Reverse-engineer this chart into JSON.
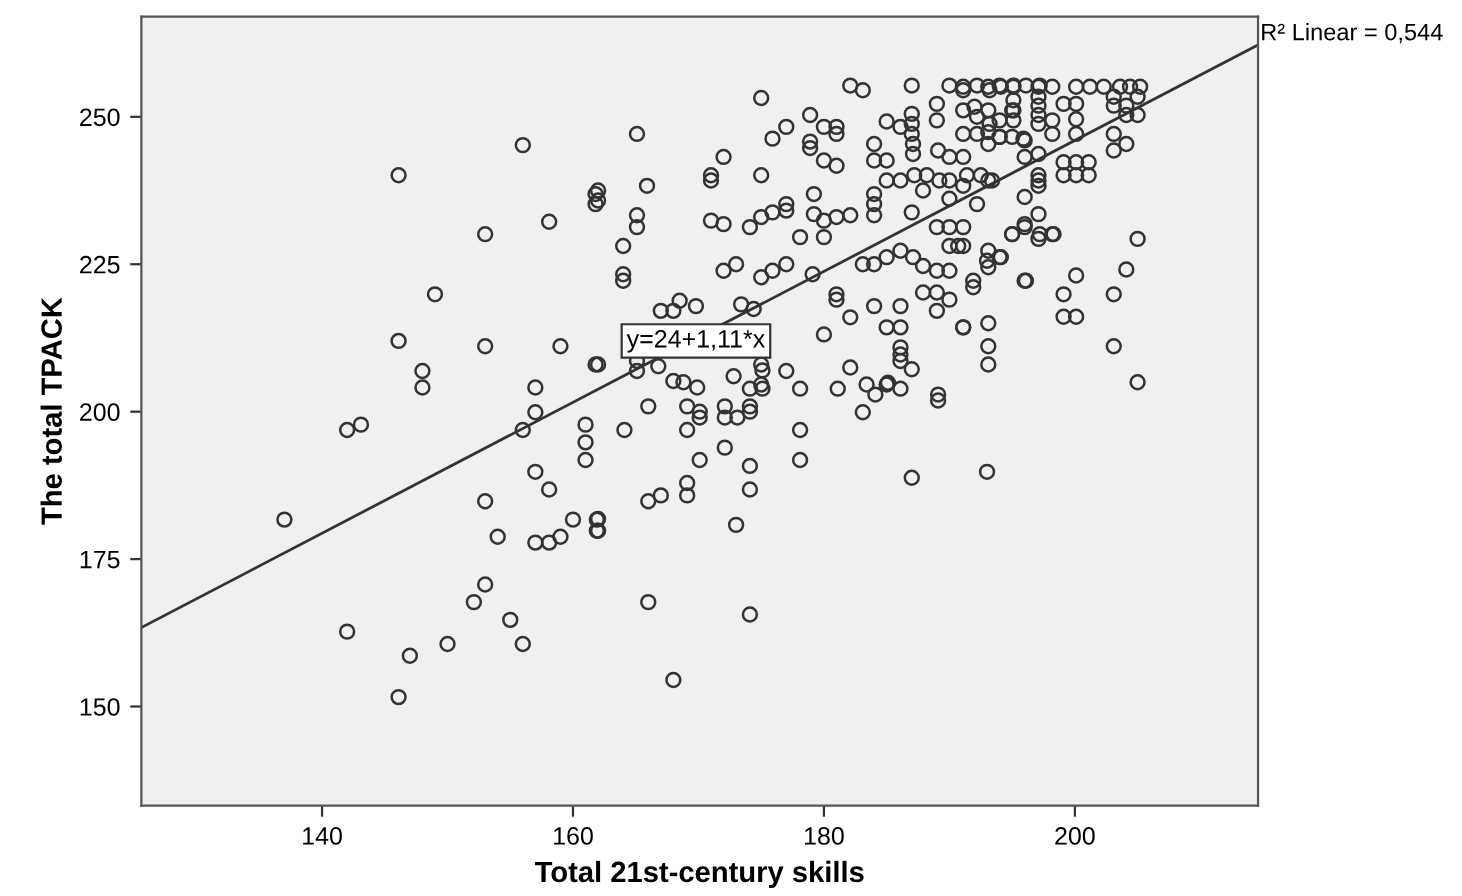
{
  "chart_data": {
    "type": "scatter",
    "xlabel": "Total 21st-century skills",
    "ylabel": "The total TPACK",
    "xlim": [
      125.6,
      214.6
    ],
    "ylim": [
      133.2,
      267.0
    ],
    "xticks": [
      140,
      160,
      180,
      200
    ],
    "yticks": [
      150,
      175,
      200,
      225,
      250
    ],
    "annotations": [
      {
        "text": "y=24+1,11*x",
        "x": 169.8,
        "y": 212
      },
      "R² Linear = 0,544"
    ],
    "series": [
      {
        "color": "#333333",
        "marker": "circle",
        "x": [
          146.1,
          156.0,
          158.1,
          153.0,
          161.8,
          161.8,
          149.0,
          146.1,
          153.0,
          159.0,
          161.8,
          148.0,
          148.0,
          157.0,
          157.0,
          142.0,
          143.1,
          156.0,
          161.0,
          161.0,
          161.0,
          157.0,
          158.1,
          153.0,
          137.0,
          160.0,
          161.9,
          161.9,
          154.0,
          157.0,
          158.1,
          159.0,
          153.0,
          152.1,
          155.0,
          142.0,
          150.0,
          156.0,
          147.0,
          146.1,
          164.1,
          166.0,
          169.1,
          169.1,
          170.1,
          170.1,
          172.1,
          172.1,
          173.1,
          174.1,
          174.1,
          174.1,
          175.1,
          175.1,
          178.1,
          181.1,
          184.1,
          186.1,
          185.1,
          183.1,
          189.1,
          189.1,
          178.1,
          172.1,
          170.1,
          174.1,
          178.1,
          187.0,
          193.0,
          169.1,
          169.1,
          167.0,
          166.0,
          174.1,
          162.0,
          162.0,
          173.0,
          166.0,
          174.1,
          168.0,
          205.0,
          204.1,
          203.1,
          200.1,
          199.1,
          199.1,
          200.1,
          203.1,
          205.0,
          196.0,
          193.1,
          193.1,
          193.1,
          191.1,
          193.1,
          194.1,
          193.1,
          203.1,
          204.1,
          203.1,
          199.1,
          200.1,
          201.1,
          199.1,
          200.1,
          201.1,
          197.1,
          197.1,
          197.1,
          196.0,
          197.1,
          196.0,
          195.0,
          198.2,
          197.1,
          191.1,
          191.1,
          193.1,
          197.1,
          200.1,
          198.2,
          196.0,
          194.0,
          195.0,
          196.0,
          191.1,
          193.1,
          193.1,
          191.1,
          193.1,
          194.1,
          195.1,
          197.1,
          198.2,
          200.1,
          201.2,
          202.3,
          203.6,
          204.4,
          205.2,
          197.1,
          197.1,
          197.1,
          197.1,
          203.1,
          204.1,
          205.0,
          203.1,
          204.1,
          205.0,
          192.0,
          193.1,
          194.0,
          195.0,
          199.1,
          200.1,
          198.2,
          200.1,
          182.1,
          183.1,
          187.0,
          175.0,
          190.0,
          191.1,
          192.2,
          193.2,
          194.0,
          195.1,
          196.1,
          197.2,
          195.1,
          195.1,
          195.1,
          189.0,
          189.0,
          187.0,
          187.0,
          187.0,
          191.1,
          192.2,
          193.2,
          192.2,
          194.0,
          195.9,
          189.1,
          190.0,
          191.1,
          184.0,
          187.1,
          187.1,
          185.0,
          186.1,
          178.9,
          180.0,
          181.0,
          181.0,
          177.0,
          175.9,
          178.9,
          178.9,
          180.0,
          181.0,
          184.0,
          185.0,
          185.0,
          186.1,
          187.2,
          188.2,
          189.2,
          190.0,
          191.4,
          192.5,
          193.4,
          187.9,
          190.0,
          192.2,
          184.0,
          184.0,
          184.0,
          187.0,
          189.0,
          190.0,
          191.1,
          190.0,
          190.7,
          195.0,
          196.0,
          197.2,
          198.3,
          193.0,
          194.0,
          191.9,
          191.9,
          196.1,
          186.1,
          187.1,
          187.9,
          189.0,
          190.0,
          185.0,
          184.0,
          182.1,
          181.0,
          180.0,
          179.2,
          178.1,
          180.0,
          179.2,
          177.0,
          177.0,
          175.9,
          175.0,
          174.1,
          172.0,
          171.0,
          175.0,
          172.0,
          171.0,
          171.0,
          165.9,
          165.1,
          165.1,
          164.0,
          165.1,
          162.0,
          162.0,
          164.0,
          164.0,
          172.0,
          173.0,
          175.0,
          175.9,
          177.0,
          179.1,
          183.1,
          181.0,
          181.0,
          182.1,
          184.0,
          186.1,
          187.9,
          189.0,
          190.0,
          189.0,
          191.1,
          173.4,
          174.4,
          167.0,
          168.0,
          168.5,
          169.8,
          185.0,
          186.1,
          186.1,
          186.1,
          186.1,
          180.0,
          182.1,
          187.0,
          183.4,
          185.0,
          177.0,
          175.0,
          175.0,
          172.8,
          169.9,
          168.8,
          168.0,
          166.8,
          165.1,
          165.1,
          162.0
        ],
        "values": [
          240.1,
          245.2,
          232.2,
          230.1,
          236.9,
          235.2,
          219.9,
          212.0,
          211.1,
          211.1,
          208.0,
          206.9,
          204.1,
          204.1,
          199.9,
          196.9,
          197.8,
          196.9,
          197.8,
          194.8,
          191.8,
          189.8,
          186.8,
          184.8,
          181.7,
          181.7,
          181.7,
          179.8,
          178.8,
          177.8,
          177.8,
          178.8,
          170.7,
          167.7,
          164.7,
          162.7,
          160.6,
          160.6,
          158.6,
          151.6,
          196.9,
          200.9,
          200.9,
          196.9,
          200.0,
          199.0,
          200.9,
          199.0,
          199.0,
          200.9,
          200.0,
          203.9,
          203.9,
          207.0,
          203.9,
          203.9,
          202.9,
          203.9,
          204.9,
          199.9,
          202.9,
          201.9,
          196.9,
          193.9,
          191.8,
          190.8,
          191.8,
          188.8,
          189.8,
          187.9,
          185.8,
          185.8,
          184.8,
          186.8,
          181.8,
          179.8,
          180.8,
          167.7,
          165.6,
          154.5,
          229.3,
          224.1,
          219.9,
          223.1,
          219.9,
          216.1,
          216.1,
          211.1,
          205.0,
          222.2,
          215.0,
          211.1,
          208.0,
          214.3,
          224.5,
          226.2,
          227.3,
          247.1,
          245.4,
          244.3,
          242.3,
          242.3,
          242.3,
          240.1,
          240.1,
          240.1,
          240.1,
          239.2,
          238.3,
          236.4,
          233.5,
          231.8,
          230.1,
          230.1,
          229.3,
          228.1,
          238.3,
          239.2,
          243.7,
          247.1,
          247.1,
          243.2,
          246.6,
          246.6,
          246.0,
          247.1,
          245.4,
          247.4,
          255.1,
          255.1,
          255.1,
          255.1,
          255.1,
          255.1,
          255.1,
          255.1,
          255.1,
          255.1,
          255.1,
          255.1,
          253.4,
          251.9,
          250.3,
          248.8,
          253.4,
          251.9,
          250.3,
          251.9,
          250.3,
          253.4,
          251.7,
          251.1,
          249.4,
          251.1,
          252.2,
          252.2,
          249.4,
          249.6,
          255.3,
          254.5,
          255.3,
          253.2,
          255.3,
          254.5,
          255.3,
          254.5,
          255.3,
          255.3,
          255.3,
          255.3,
          252.8,
          251.1,
          249.4,
          252.2,
          249.4,
          250.5,
          248.8,
          247.1,
          251.1,
          250.0,
          248.8,
          247.1,
          246.6,
          246.3,
          244.3,
          243.2,
          243.2,
          245.4,
          243.7,
          245.4,
          249.2,
          248.3,
          250.3,
          248.3,
          248.3,
          247.1,
          248.3,
          246.3,
          245.8,
          244.7,
          242.6,
          241.7,
          242.6,
          242.6,
          239.2,
          239.2,
          240.1,
          240.1,
          239.2,
          239.2,
          240.1,
          240.1,
          239.2,
          237.5,
          236.1,
          235.2,
          236.9,
          235.2,
          233.3,
          233.8,
          231.3,
          231.3,
          231.3,
          228.1,
          228.1,
          230.1,
          231.3,
          230.1,
          230.1,
          225.6,
          226.2,
          222.2,
          221.1,
          222.2,
          227.3,
          226.2,
          224.7,
          223.9,
          223.9,
          226.2,
          225.0,
          233.3,
          233.0,
          232.4,
          233.5,
          229.6,
          229.6,
          236.9,
          235.2,
          234.1,
          233.8,
          233.0,
          231.3,
          231.8,
          232.4,
          240.1,
          243.2,
          240.1,
          239.2,
          238.3,
          247.1,
          233.3,
          228.1,
          231.3,
          237.5,
          235.8,
          223.3,
          222.2,
          223.9,
          225.0,
          222.8,
          223.9,
          225.0,
          223.3,
          225.0,
          219.9,
          219.0,
          216.0,
          217.9,
          217.9,
          220.2,
          220.2,
          219.0,
          217.1,
          214.3,
          218.2,
          217.4,
          217.1,
          217.1,
          218.8,
          217.9,
          214.3,
          214.3,
          210.9,
          209.7,
          208.6,
          213.1,
          207.5,
          207.2,
          204.6,
          204.6,
          206.9,
          208.0,
          204.6,
          206.0,
          204.1,
          205.0,
          205.2,
          207.7,
          208.6,
          206.9,
          208.0
        ]
      },
      {
        "type": "line",
        "color": "#333333",
        "x": [
          125.6,
          214.6
        ],
        "values": [
          163.4,
          262.2
        ]
      }
    ]
  }
}
